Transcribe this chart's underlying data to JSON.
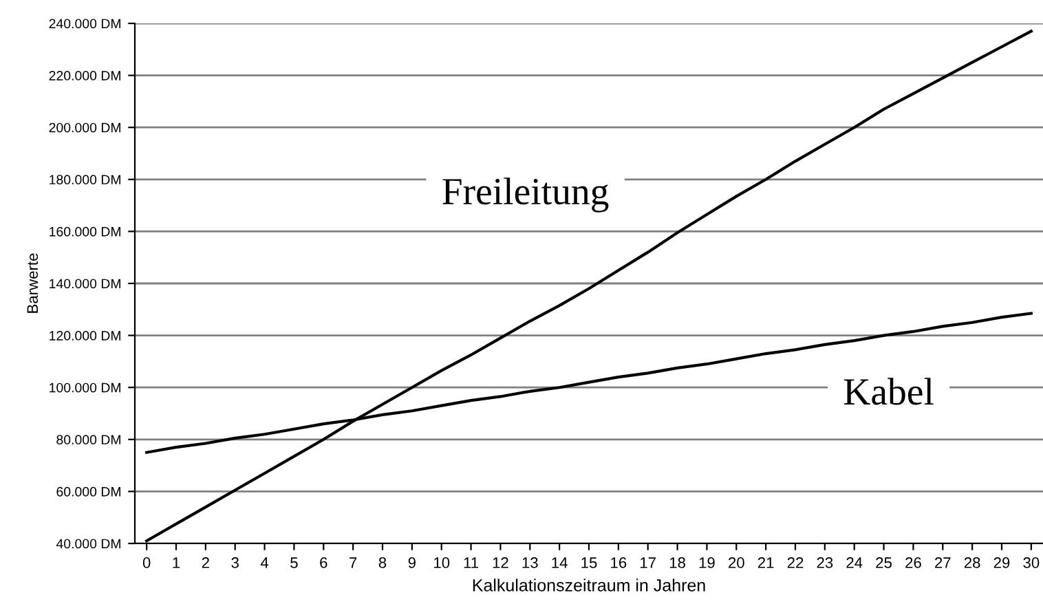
{
  "chart_data": {
    "type": "line",
    "xlabel": "Kalkulationszeitraum in Jahren",
    "ylabel": "Barwerte",
    "x": [
      0,
      1,
      2,
      3,
      4,
      5,
      6,
      7,
      8,
      9,
      10,
      11,
      12,
      13,
      14,
      15,
      16,
      17,
      18,
      19,
      20,
      21,
      22,
      23,
      24,
      25,
      26,
      27,
      28,
      29,
      30
    ],
    "series": [
      {
        "name": "Freileitung",
        "color": "#000000",
        "values": [
          41000,
          47500,
          54000,
          60500,
          67000,
          73500,
          80000,
          87000,
          93500,
          100000,
          106500,
          112500,
          119000,
          125500,
          131500,
          138000,
          145000,
          152000,
          159500,
          166500,
          173500,
          180000,
          187000,
          193500,
          200000,
          207000,
          213000,
          219000,
          225000,
          231000,
          237000
        ]
      },
      {
        "name": "Kabel",
        "color": "#000000",
        "values": [
          75000,
          77000,
          78500,
          80500,
          82000,
          84000,
          86000,
          87500,
          89500,
          91000,
          93000,
          95000,
          96500,
          98500,
          100000,
          102000,
          104000,
          105500,
          107500,
          109000,
          111000,
          113000,
          114500,
          116500,
          118000,
          120000,
          121500,
          123500,
          125000,
          127000,
          128500
        ]
      }
    ],
    "xlim": [
      -0.4,
      30.4
    ],
    "xticks": [
      0,
      1,
      2,
      3,
      4,
      5,
      6,
      7,
      8,
      9,
      10,
      11,
      12,
      13,
      14,
      15,
      16,
      17,
      18,
      19,
      20,
      21,
      22,
      23,
      24,
      25,
      26,
      27,
      28,
      29,
      30
    ],
    "ylim": [
      40000,
      240000
    ],
    "yticks": [
      {
        "value": 40000,
        "label": "40.000 DM"
      },
      {
        "value": 60000,
        "label": "60.000 DM"
      },
      {
        "value": 80000,
        "label": "80.000 DM"
      },
      {
        "value": 100000,
        "label": "100.000 DM"
      },
      {
        "value": 120000,
        "label": "120.000 DM"
      },
      {
        "value": 140000,
        "label": "140.000 DM"
      },
      {
        "value": 160000,
        "label": "160.000 DM"
      },
      {
        "value": 180000,
        "label": "180.000 DM"
      },
      {
        "value": 200000,
        "label": "200.000 DM"
      },
      {
        "value": 220000,
        "label": "220.000 DM"
      },
      {
        "value": 240000,
        "label": "240.000 DM"
      }
    ],
    "grid": "y",
    "legend": false,
    "marker": "none",
    "line_style": "solid"
  }
}
